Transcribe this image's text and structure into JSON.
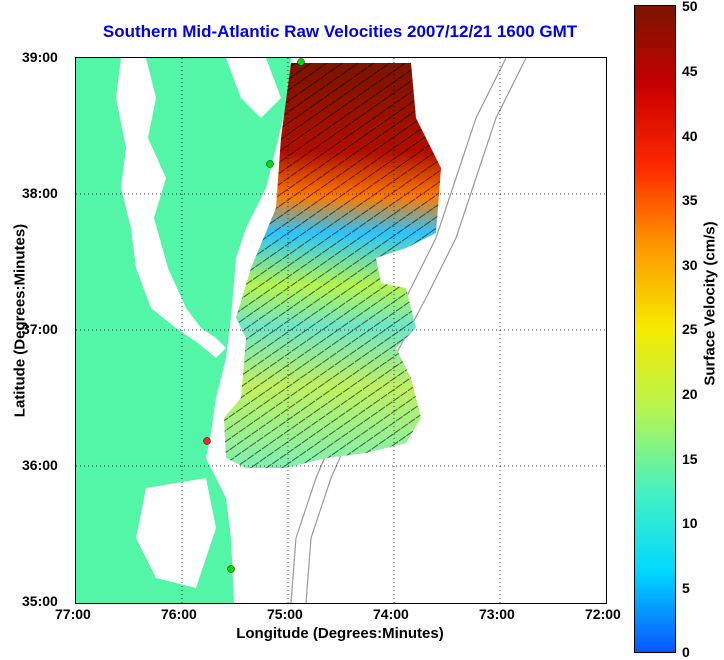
{
  "title": "Southern Mid-Atlantic Raw Velocities 2007/12/21 1600 GMT",
  "xlabel": "Longitude (Degrees:Minutes)",
  "ylabel": "Latitude (Degrees:Minutes)",
  "x_ticks": [
    "77:00",
    "76:00",
    "75:00",
    "74:00",
    "73:00",
    "72:00"
  ],
  "y_ticks": [
    "39:00",
    "38:00",
    "37:00",
    "36:00",
    "35:00"
  ],
  "colorbar": {
    "label": "Surface Velocity (cm/s)",
    "ticks": [
      "50",
      "45",
      "40",
      "35",
      "30",
      "25",
      "20",
      "15",
      "10",
      "5",
      "0"
    ],
    "colors": [
      "#0a55ff",
      "#00d8ff",
      "#46f2c0",
      "#b6f550",
      "#f5ea00",
      "#ff9a00",
      "#ff2a00",
      "#c80000",
      "#7a1400"
    ]
  },
  "map": {
    "land_color": "#53f5a6",
    "station_colors": [
      "#00dd00",
      "#00dd00",
      "#ff2222",
      "#00dd00"
    ]
  }
}
